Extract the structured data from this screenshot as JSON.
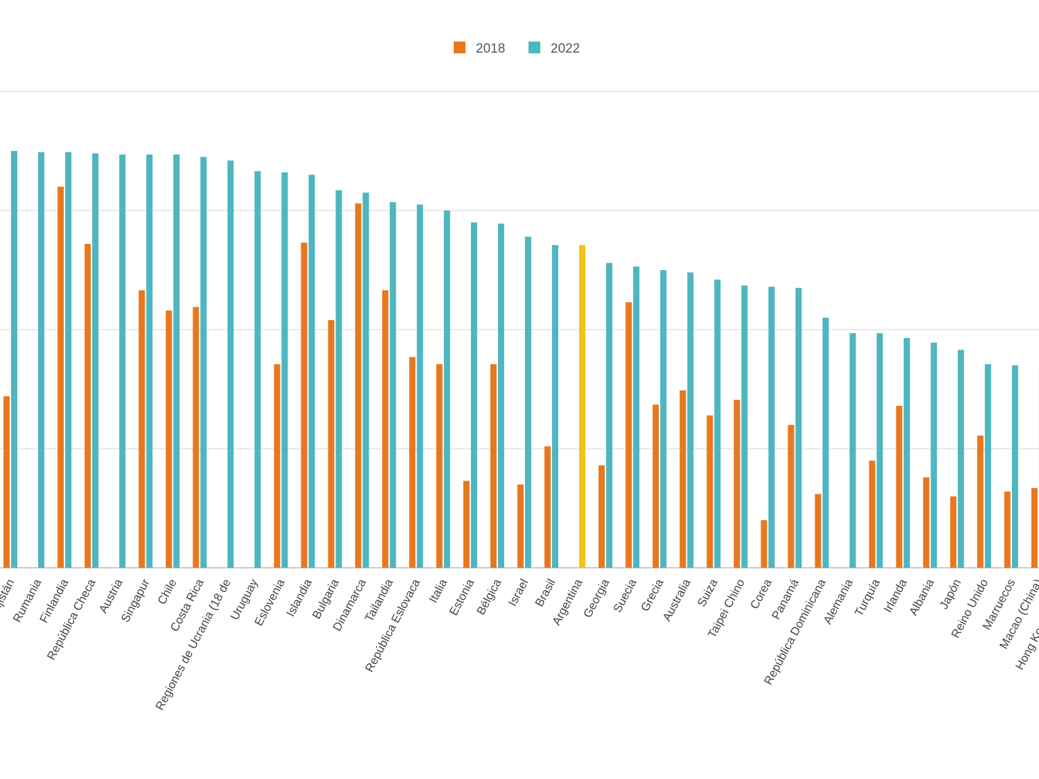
{
  "chart_data": {
    "type": "bar",
    "title": "",
    "xlabel": "",
    "ylabel": "",
    "grid": true,
    "legend_position": "top-center",
    "ylim": [
      0,
      4
    ],
    "categories": [
      "Kazajistán",
      "Rumania",
      "Finlandia",
      "República Checa",
      "Austria",
      "Singapur",
      "Chile",
      "Costa Rica",
      "Regiones de Ucrania (18 de",
      "Uruguay",
      "Eslovenia",
      "Islandia",
      "Bulgaria",
      "Dinamarca",
      "Tailandia",
      "República Eslovaca",
      "Italia",
      "Estonia",
      "Bélgica",
      "Israel",
      "Brasil",
      "Argentina",
      "Georgia",
      "Suecia",
      "Grecia",
      "Australia",
      "Suiza",
      "Taipei Chino",
      "Corea",
      "Panamá",
      "República Dominicana",
      "Alemania",
      "Turquía",
      "Irlanda",
      "Albania",
      "Japón",
      "Reino Unido",
      "Marruecos",
      "Macao (China)",
      "Hong Kong (China)"
    ],
    "series": [
      {
        "name": "2018",
        "color": "#e8781e",
        "values": [
          1.44,
          null,
          3.2,
          2.72,
          null,
          2.33,
          2.16,
          2.19,
          null,
          null,
          1.71,
          2.73,
          2.08,
          3.06,
          2.33,
          1.77,
          1.71,
          0.73,
          1.71,
          0.7,
          1.02,
          null,
          0.86,
          2.23,
          1.37,
          1.49,
          1.28,
          1.41,
          0.4,
          1.2,
          0.62,
          null,
          0.9,
          1.36,
          0.76,
          0.6,
          1.11,
          0.64,
          0.67,
          null
        ]
      },
      {
        "name": "2022",
        "color": "#4db6c1",
        "values": [
          3.5,
          3.49,
          3.49,
          3.48,
          3.47,
          3.47,
          3.47,
          3.45,
          3.42,
          3.33,
          3.32,
          3.3,
          3.17,
          3.15,
          3.07,
          3.05,
          3.0,
          2.9,
          2.89,
          2.78,
          2.71,
          2.71,
          2.56,
          2.53,
          2.5,
          2.48,
          2.42,
          2.37,
          2.36,
          2.35,
          2.1,
          1.97,
          1.97,
          1.93,
          1.89,
          1.83,
          1.71,
          1.7,
          1.7,
          null
        ]
      }
    ],
    "highlight": {
      "category": "Argentina",
      "series": "2022",
      "color": "#f2c418"
    }
  }
}
